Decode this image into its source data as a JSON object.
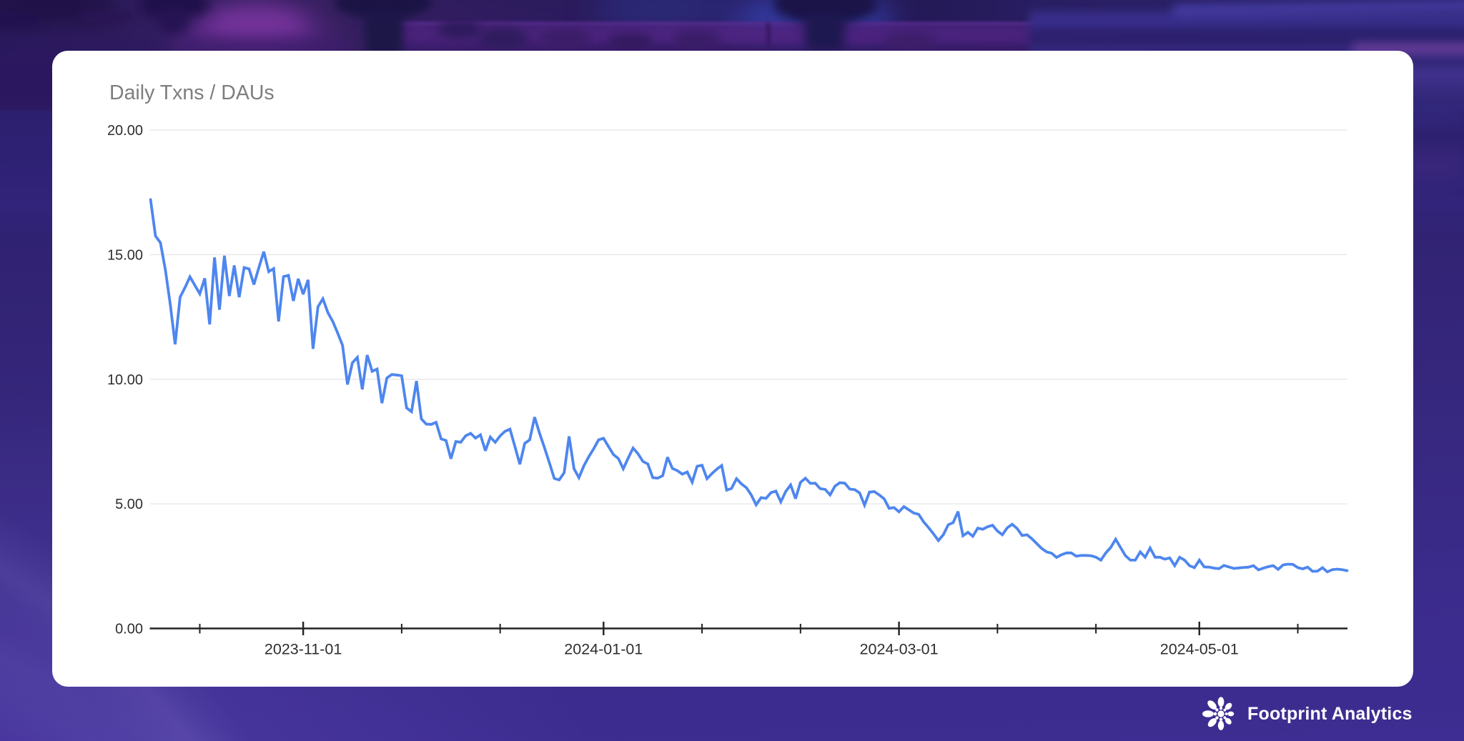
{
  "title": "Daily Txns / DAUs",
  "watermark": {
    "label": "Footprint Analytics",
    "icon": "footprint-flower-icon"
  },
  "colors": {
    "line": "#4e86ef",
    "grid": "#e9e9e9",
    "axis": "#222222",
    "axis_label": "#2e2e2e",
    "title": "#7e7e7e",
    "card_background": "#ffffff",
    "page_background": "#392a85",
    "watermark": "#ffffff"
  },
  "chart_data": {
    "type": "line",
    "title": "Daily Txns / DAUs",
    "xlabel": "",
    "ylabel": "",
    "ylim": [
      0,
      20
    ],
    "y_tick_labels": [
      "0.00",
      "5.00",
      "10.00",
      "15.00",
      "20.00"
    ],
    "y_tick_values": [
      0,
      5,
      10,
      15,
      20
    ],
    "x_tick_dates": [
      "2023-10-11",
      "2023-11-01",
      "2023-11-21",
      "2023-12-11",
      "2024-01-01",
      "2024-01-21",
      "2024-02-10",
      "2024-03-01",
      "2024-03-21",
      "2024-04-10",
      "2024-05-01",
      "2024-05-21"
    ],
    "x_labeled_ticks": [
      "2023-11-01",
      "2024-01-01",
      "2024-03-01",
      "2024-05-01"
    ],
    "grid": "horizontal",
    "legend": "none",
    "start_date": "2023-10-01",
    "end_date": "2024-05-31",
    "x": [
      "2023-10-01",
      "2023-10-02",
      "2023-10-03",
      "2023-10-04",
      "2023-10-05",
      "2023-10-06",
      "2023-10-07",
      "2023-10-08",
      "2023-10-09",
      "2023-10-10",
      "2023-10-11",
      "2023-10-12",
      "2023-10-13",
      "2023-10-14",
      "2023-10-15",
      "2023-10-16",
      "2023-10-17",
      "2023-10-18",
      "2023-10-19",
      "2023-10-20",
      "2023-10-21",
      "2023-10-22",
      "2023-10-23",
      "2023-10-24",
      "2023-10-25",
      "2023-10-26",
      "2023-10-27",
      "2023-10-28",
      "2023-10-29",
      "2023-10-30",
      "2023-10-31",
      "2023-11-01",
      "2023-11-02",
      "2023-11-03",
      "2023-11-04",
      "2023-11-05",
      "2023-11-06",
      "2023-11-07",
      "2023-11-08",
      "2023-11-09",
      "2023-11-10",
      "2023-11-11",
      "2023-11-12",
      "2023-11-13",
      "2023-11-14",
      "2023-11-15",
      "2023-11-16",
      "2023-11-17",
      "2023-11-18",
      "2023-11-19",
      "2023-11-20",
      "2023-11-21",
      "2023-11-22",
      "2023-11-23",
      "2023-11-24",
      "2023-11-25",
      "2023-11-26",
      "2023-11-27",
      "2023-11-28",
      "2023-11-29",
      "2023-11-30",
      "2023-12-01",
      "2023-12-02",
      "2023-12-03",
      "2023-12-04",
      "2023-12-05",
      "2023-12-06",
      "2023-12-07",
      "2023-12-08",
      "2023-12-09",
      "2023-12-10",
      "2023-12-11",
      "2023-12-12",
      "2023-12-13",
      "2023-12-14",
      "2023-12-15",
      "2023-12-16",
      "2023-12-17",
      "2023-12-18",
      "2023-12-19",
      "2023-12-20",
      "2023-12-21",
      "2023-12-22",
      "2023-12-23",
      "2023-12-24",
      "2023-12-25",
      "2023-12-26",
      "2023-12-27",
      "2023-12-28",
      "2023-12-29",
      "2023-12-30",
      "2023-12-31",
      "2024-01-01",
      "2024-01-02",
      "2024-01-03",
      "2024-01-04",
      "2024-01-05",
      "2024-01-06",
      "2024-01-07",
      "2024-01-08",
      "2024-01-09",
      "2024-01-10",
      "2024-01-11",
      "2024-01-12",
      "2024-01-13",
      "2024-01-14",
      "2024-01-15",
      "2024-01-16",
      "2024-01-17",
      "2024-01-18",
      "2024-01-19",
      "2024-01-20",
      "2024-01-21",
      "2024-01-22",
      "2024-01-23",
      "2024-01-24",
      "2024-01-25",
      "2024-01-26",
      "2024-01-27",
      "2024-01-28",
      "2024-01-29",
      "2024-01-30",
      "2024-01-31",
      "2024-02-01",
      "2024-02-02",
      "2024-02-03",
      "2024-02-04",
      "2024-02-05",
      "2024-02-06",
      "2024-02-07",
      "2024-02-08",
      "2024-02-09",
      "2024-02-10",
      "2024-02-11",
      "2024-02-12",
      "2024-02-13",
      "2024-02-14",
      "2024-02-15",
      "2024-02-16",
      "2024-02-17",
      "2024-02-18",
      "2024-02-19",
      "2024-02-20",
      "2024-02-21",
      "2024-02-22",
      "2024-02-23",
      "2024-02-24",
      "2024-02-25",
      "2024-02-26",
      "2024-02-27",
      "2024-02-28",
      "2024-02-29",
      "2024-03-01",
      "2024-03-02",
      "2024-03-03",
      "2024-03-04",
      "2024-03-05",
      "2024-03-06",
      "2024-03-07",
      "2024-03-08",
      "2024-03-09",
      "2024-03-10",
      "2024-03-11",
      "2024-03-12",
      "2024-03-13",
      "2024-03-14",
      "2024-03-15",
      "2024-03-16",
      "2024-03-17",
      "2024-03-18",
      "2024-03-19",
      "2024-03-20",
      "2024-03-21",
      "2024-03-22",
      "2024-03-23",
      "2024-03-24",
      "2024-03-25",
      "2024-03-26",
      "2024-03-27",
      "2024-03-28",
      "2024-03-29",
      "2024-03-30",
      "2024-03-31",
      "2024-04-01",
      "2024-04-02",
      "2024-04-03",
      "2024-04-04",
      "2024-04-05",
      "2024-04-06",
      "2024-04-07",
      "2024-04-08",
      "2024-04-09",
      "2024-04-10",
      "2024-04-11",
      "2024-04-12",
      "2024-04-13",
      "2024-04-14",
      "2024-04-15",
      "2024-04-16",
      "2024-04-17",
      "2024-04-18",
      "2024-04-19",
      "2024-04-20",
      "2024-04-21",
      "2024-04-22",
      "2024-04-23",
      "2024-04-24",
      "2024-04-25",
      "2024-04-26",
      "2024-04-27",
      "2024-04-28",
      "2024-04-29",
      "2024-04-30",
      "2024-05-01",
      "2024-05-02",
      "2024-05-03",
      "2024-05-04",
      "2024-05-05",
      "2024-05-06",
      "2024-05-07",
      "2024-05-08",
      "2024-05-09",
      "2024-05-10",
      "2024-05-11",
      "2024-05-12",
      "2024-05-13",
      "2024-05-14",
      "2024-05-15",
      "2024-05-16",
      "2024-05-17",
      "2024-05-18",
      "2024-05-19",
      "2024-05-20",
      "2024-05-21",
      "2024-05-22",
      "2024-05-23",
      "2024-05-24",
      "2024-05-25",
      "2024-05-26",
      "2024-05-27",
      "2024-05-28",
      "2024-05-29",
      "2024-05-30",
      "2024-05-31"
    ],
    "values": [
      17.21,
      15.75,
      15.48,
      14.4,
      13.0,
      11.4,
      13.29,
      13.68,
      14.11,
      13.77,
      13.43,
      14.05,
      12.2,
      14.89,
      12.79,
      14.96,
      13.34,
      14.57,
      13.29,
      14.48,
      14.43,
      13.8,
      14.48,
      15.12,
      14.32,
      14.44,
      12.32,
      14.12,
      14.17,
      13.14,
      14.03,
      13.41,
      13.99,
      11.22,
      12.91,
      13.23,
      12.68,
      12.32,
      11.86,
      11.36,
      9.79,
      10.66,
      10.88,
      9.59,
      10.97,
      10.32,
      10.41,
      9.04,
      10.05,
      10.19,
      10.17,
      10.14,
      8.85,
      8.7,
      9.93,
      8.41,
      8.2,
      8.19,
      8.27,
      7.61,
      7.54,
      6.81,
      7.5,
      7.47,
      7.73,
      7.83,
      7.64,
      7.77,
      7.13,
      7.68,
      7.47,
      7.73,
      7.91,
      8.0,
      7.3,
      6.59,
      7.43,
      7.57,
      8.48,
      7.83,
      7.26,
      6.65,
      6.02,
      5.96,
      6.25,
      7.71,
      6.41,
      6.05,
      6.52,
      6.89,
      7.21,
      7.57,
      7.63,
      7.3,
      6.98,
      6.82,
      6.41,
      6.83,
      7.24,
      7.01,
      6.7,
      6.6,
      6.05,
      6.03,
      6.13,
      6.87,
      6.42,
      6.33,
      6.19,
      6.28,
      5.87,
      6.51,
      6.55,
      6.01,
      6.21,
      6.39,
      6.54,
      5.55,
      5.62,
      6.01,
      5.8,
      5.65,
      5.36,
      4.96,
      5.25,
      5.22,
      5.45,
      5.51,
      5.08,
      5.5,
      5.76,
      5.21,
      5.86,
      6.03,
      5.82,
      5.83,
      5.61,
      5.58,
      5.36,
      5.71,
      5.85,
      5.83,
      5.59,
      5.57,
      5.44,
      4.95,
      5.47,
      5.49,
      5.36,
      5.2,
      4.82,
      4.85,
      4.68,
      4.89,
      4.76,
      4.63,
      4.58,
      4.28,
      4.05,
      3.8,
      3.53,
      3.76,
      4.16,
      4.25,
      4.69,
      3.72,
      3.86,
      3.7,
      4.03,
      3.98,
      4.08,
      4.14,
      3.91,
      3.76,
      4.04,
      4.18,
      4.01,
      3.73,
      3.76,
      3.6,
      3.4,
      3.21,
      3.07,
      3.02,
      2.85,
      2.96,
      3.03,
      3.03,
      2.9,
      2.93,
      2.93,
      2.92,
      2.86,
      2.74,
      3.03,
      3.25,
      3.58,
      3.25,
      2.92,
      2.74,
      2.74,
      3.07,
      2.86,
      3.23,
      2.86,
      2.86,
      2.78,
      2.83,
      2.52,
      2.86,
      2.74,
      2.52,
      2.44,
      2.74,
      2.47,
      2.46,
      2.42,
      2.4,
      2.53,
      2.47,
      2.41,
      2.43,
      2.45,
      2.46,
      2.52,
      2.35,
      2.42,
      2.48,
      2.52,
      2.37,
      2.55,
      2.58,
      2.57,
      2.44,
      2.39,
      2.46,
      2.29,
      2.3,
      2.44,
      2.27,
      2.36,
      2.38,
      2.36,
      2.32
    ]
  }
}
